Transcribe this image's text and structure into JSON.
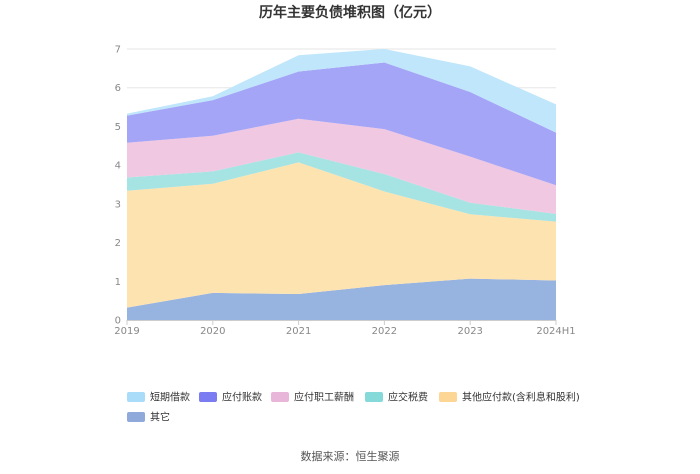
{
  "chart_data": {
    "type": "area",
    "stacked": true,
    "title": "历年主要负债堆积图（亿元）",
    "categories": [
      "2019",
      "2020",
      "2021",
      "2022",
      "2023",
      "2024H1"
    ],
    "ylim": [
      0,
      7
    ],
    "yticks": [
      "0",
      "1",
      "2",
      "3",
      "4",
      "5",
      "6",
      "7"
    ],
    "grid": true,
    "legend_position": "bottom",
    "series": [
      {
        "name": "其它",
        "color": "#97b3e0",
        "values": [
          0.32,
          0.7,
          0.67,
          0.9,
          1.07,
          1.02
        ]
      },
      {
        "name": "其他应付款(含利息和股利)",
        "color": "#fde3b0",
        "values": [
          3.02,
          2.82,
          3.4,
          2.42,
          1.66,
          1.52
        ]
      },
      {
        "name": "应交税费",
        "color": "#a6e3e3",
        "values": [
          0.34,
          0.32,
          0.26,
          0.45,
          0.3,
          0.2
        ]
      },
      {
        "name": "应付职工薪酬",
        "color": "#f0c8e2",
        "values": [
          0.9,
          0.92,
          0.87,
          1.16,
          1.19,
          0.74
        ]
      },
      {
        "name": "应付账款",
        "color": "#a5a5f7",
        "values": [
          0.7,
          0.92,
          1.22,
          1.72,
          1.67,
          1.36
        ]
      },
      {
        "name": "短期借款",
        "color": "#bfe6fb",
        "values": [
          0.05,
          0.1,
          0.42,
          0.35,
          0.66,
          0.73
        ]
      }
    ],
    "legend": [
      {
        "name": "短期借款",
        "color": "#a8dcf8"
      },
      {
        "name": "应付账款",
        "color": "#7b7bf2"
      },
      {
        "name": "应付职工薪酬",
        "color": "#e8b6d9"
      },
      {
        "name": "应交税费",
        "color": "#86d9d9"
      },
      {
        "name": "其他应付款(含利息和股利)",
        "color": "#fdd595"
      },
      {
        "name": "其它",
        "color": "#8fa9db"
      }
    ]
  },
  "source": "数据来源：恒生聚源"
}
